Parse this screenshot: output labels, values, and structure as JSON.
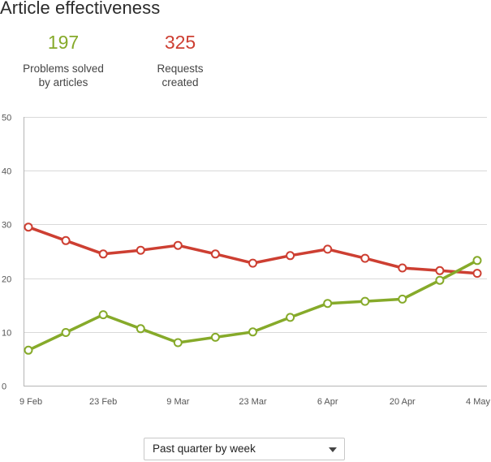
{
  "title": "Article effectiveness",
  "stats": {
    "solved": {
      "value": "197",
      "label": "Problems solved\nby articles"
    },
    "requests": {
      "value": "325",
      "label": "Requests\ncreated"
    }
  },
  "colors": {
    "solved": "#86aa2a",
    "requests": "#cd3f32",
    "grid": "#d9d9d9",
    "axis": "#b5b5b5"
  },
  "period_select": {
    "value": "Past quarter by week",
    "icon": "chevron-down-icon"
  },
  "chart_data": {
    "type": "line",
    "x": [
      "9 Feb",
      "16 Feb",
      "23 Feb",
      "2 Mar",
      "9 Mar",
      "16 Mar",
      "23 Mar",
      "30 Mar",
      "6 Apr",
      "13 Apr",
      "20 Apr",
      "27 Apr",
      "4 May"
    ],
    "x_tick_labels": [
      "9 Feb",
      "23 Feb",
      "9 Mar",
      "23 Mar",
      "6 Apr",
      "20 Apr",
      "4 May"
    ],
    "y_ticks": [
      0,
      10,
      20,
      30,
      40,
      50
    ],
    "ylim": [
      0,
      50
    ],
    "grid": true,
    "legend": "none",
    "series": [
      {
        "key": "requests",
        "values": [
          29.5,
          27.0,
          24.5,
          25.2,
          26.1,
          24.5,
          22.8,
          24.2,
          25.4,
          23.7,
          21.9,
          21.4,
          20.9
        ]
      },
      {
        "key": "solved",
        "values": [
          6.6,
          9.9,
          13.2,
          10.6,
          8.0,
          9.0,
          10.0,
          12.7,
          15.3,
          15.7,
          16.1,
          19.6,
          23.3
        ]
      }
    ]
  }
}
